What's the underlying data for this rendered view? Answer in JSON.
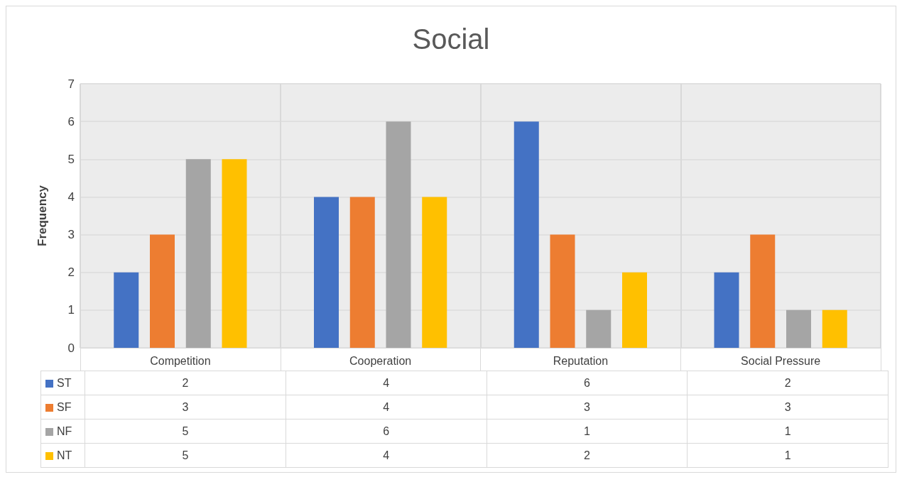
{
  "chart_data": {
    "type": "bar",
    "title": "Social",
    "ylabel": "Frequency",
    "categories": [
      "Competition",
      "Cooperation",
      "Reputation",
      "Social Pressure"
    ],
    "series": [
      {
        "name": "ST",
        "color": "#4472c4",
        "values": [
          2,
          4,
          6,
          2
        ]
      },
      {
        "name": "SF",
        "color": "#ed7d31",
        "values": [
          3,
          4,
          3,
          3
        ]
      },
      {
        "name": "NF",
        "color": "#a5a5a5",
        "values": [
          5,
          6,
          1,
          1
        ]
      },
      {
        "name": "NT",
        "color": "#ffc000",
        "values": [
          5,
          4,
          2,
          1
        ]
      }
    ],
    "ylim": [
      0,
      7
    ],
    "yticks": [
      0,
      1,
      2,
      3,
      4,
      5,
      6,
      7
    ],
    "grid": true,
    "legend": "bottom",
    "data_labels": true
  }
}
